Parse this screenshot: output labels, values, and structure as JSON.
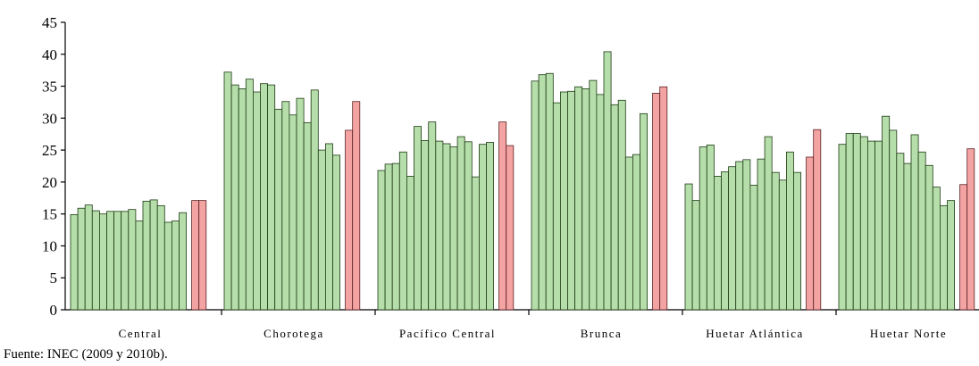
{
  "chart_data": {
    "type": "bar",
    "ylim": [
      0,
      45
    ],
    "yticks": [
      0,
      5,
      10,
      15,
      20,
      25,
      30,
      35,
      40,
      45
    ],
    "grid": false,
    "colors": {
      "normal": "#b5deaa",
      "highlight": "#f4a3a3",
      "stroke": "#1e3a14",
      "stroke_highlight": "#5a1f1f"
    },
    "groups": [
      {
        "name": "Central",
        "values": [
          14.9,
          15.9,
          16.4,
          15.5,
          15.0,
          15.4,
          15.4,
          15.4,
          15.7,
          13.9,
          17.0,
          17.2,
          16.3,
          13.7,
          13.9,
          15.2
        ],
        "highlight_values": [
          17.1,
          17.1
        ]
      },
      {
        "name": "Chorotega",
        "values": [
          37.2,
          35.2,
          34.6,
          36.1,
          34.1,
          35.4,
          35.2,
          31.4,
          32.6,
          30.5,
          33.1,
          29.3,
          34.4,
          25.0,
          26.0,
          24.2
        ],
        "highlight_values": [
          28.1,
          32.6
        ]
      },
      {
        "name": "Pacífico Central",
        "values": [
          21.8,
          22.8,
          22.9,
          24.7,
          20.9,
          28.7,
          26.5,
          29.4,
          26.4,
          26.0,
          25.5,
          27.1,
          26.3,
          20.8,
          25.9,
          26.2
        ],
        "highlight_values": [
          29.4,
          25.7
        ]
      },
      {
        "name": "Brunca",
        "values": [
          35.8,
          36.8,
          37.0,
          32.4,
          34.1,
          34.2,
          34.9,
          34.6,
          35.9,
          33.7,
          40.4,
          32.1,
          32.8,
          23.9,
          24.3,
          30.7
        ],
        "highlight_values": [
          33.9,
          34.9
        ]
      },
      {
        "name": "Huetar Atlántica",
        "values": [
          19.7,
          17.1,
          25.5,
          25.8,
          20.9,
          21.6,
          22.4,
          23.2,
          23.5,
          19.5,
          23.6,
          27.1,
          21.5,
          20.3,
          24.7,
          21.5
        ],
        "highlight_values": [
          23.9,
          28.2
        ]
      },
      {
        "name": "Huetar Norte",
        "values": [
          25.9,
          27.6,
          27.6,
          27.1,
          26.4,
          26.4,
          30.3,
          28.1,
          24.5,
          22.9,
          27.4,
          24.7,
          22.6,
          19.2,
          16.3,
          17.1
        ],
        "highlight_values": [
          19.6,
          25.2
        ]
      }
    ]
  },
  "source_note": "Fuente: INEC (2009 y 2010b)."
}
